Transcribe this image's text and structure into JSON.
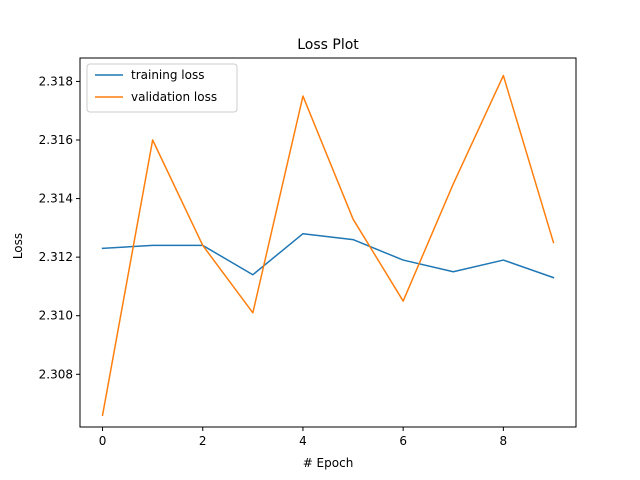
{
  "chart_data": {
    "type": "line",
    "title": "Loss Plot",
    "xlabel": "# Epoch",
    "ylabel": "Loss",
    "x": [
      0,
      1,
      2,
      3,
      4,
      5,
      6,
      7,
      8,
      9
    ],
    "xlim": [
      -0.45,
      9.45
    ],
    "ylim": [
      2.3062,
      2.3188
    ],
    "xticks": [
      0,
      2,
      4,
      6,
      8
    ],
    "yticks": [
      2.308,
      2.31,
      2.312,
      2.314,
      2.316,
      2.318
    ],
    "xtick_labels": [
      "0",
      "2",
      "4",
      "6",
      "8"
    ],
    "ytick_labels": [
      "2.308",
      "2.310",
      "2.312",
      "2.314",
      "2.316",
      "2.318"
    ],
    "grid": false,
    "legend_position": "upper-left",
    "series": [
      {
        "name": "training loss",
        "color": "#1f77b4",
        "values": [
          2.3123,
          2.3124,
          2.3124,
          2.3114,
          2.3128,
          2.3126,
          2.3119,
          2.3115,
          2.3119,
          2.3113
        ]
      },
      {
        "name": "validation loss",
        "color": "#ff7f0e",
        "values": [
          2.3066,
          2.316,
          2.3124,
          2.3101,
          2.3175,
          2.3133,
          2.3105,
          2.3145,
          2.3182,
          2.3125
        ]
      }
    ]
  }
}
